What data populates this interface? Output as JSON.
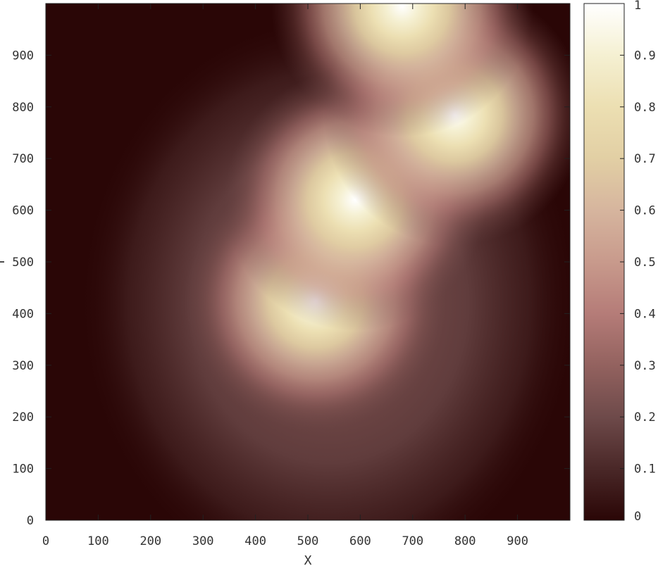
{
  "chart_data": {
    "type": "heatmap",
    "title": "",
    "xlabel": "X",
    "ylabel": "Y",
    "xlim": [
      0,
      1000
    ],
    "ylim": [
      0,
      1000
    ],
    "x_ticks": [
      0,
      100,
      200,
      300,
      400,
      500,
      600,
      700,
      800,
      900
    ],
    "y_ticks": [
      0,
      100,
      200,
      300,
      400,
      500,
      600,
      700,
      800,
      900
    ],
    "colorbar": {
      "range": [
        0,
        1
      ],
      "ticks": [
        "0",
        "0.1",
        "0.2",
        "0.3",
        "0.4",
        "0.5",
        "0.6",
        "0.7",
        "0.8",
        "0.9",
        "1"
      ],
      "colors": [
        "#2a0606",
        "#4a2828",
        "#6e4a4a",
        "#93625f",
        "#b57c78",
        "#c89a8c",
        "#d6b59e",
        "#e2cfa4",
        "#ecdfb2",
        "#f5f0d2",
        "#ffffff"
      ]
    },
    "peaks": [
      {
        "x": 515,
        "y": 425,
        "value": 1.0
      },
      {
        "x": 590,
        "y": 620,
        "value": 1.0
      },
      {
        "x": 780,
        "y": 785,
        "value": 1.0
      },
      {
        "x": 680,
        "y": 995,
        "value": 1.0
      }
    ],
    "grid": false,
    "legend": "colorbar-right"
  }
}
